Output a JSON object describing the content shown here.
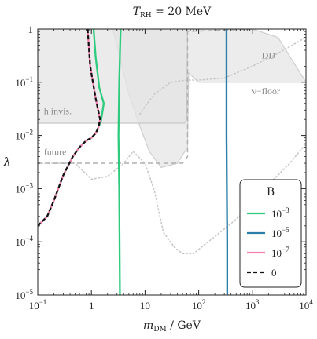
{
  "chart_data": {
    "type": "line",
    "title_text": "= 20 MeV",
    "title_symbol": "T",
    "title_sub": "RH",
    "xlabel_symbol": "m",
    "xlabel_sub": "DM",
    "xlabel_unit": "/ GeV",
    "ylabel": "λ",
    "x_scale": "log",
    "y_scale": "log",
    "xlim": [
      0.1,
      10000
    ],
    "ylim": [
      1e-05,
      1
    ],
    "x_ticks": [
      {
        "value": 0.1,
        "base": "10",
        "exp": "−1"
      },
      {
        "value": 1,
        "base": "1",
        "exp": ""
      },
      {
        "value": 10,
        "base": "10",
        "exp": ""
      },
      {
        "value": 100,
        "base": "10",
        "exp": "2"
      },
      {
        "value": 1000,
        "base": "10",
        "exp": "3"
      },
      {
        "value": 10000,
        "base": "10",
        "exp": "4"
      }
    ],
    "y_ticks": [
      {
        "value": 1e-05,
        "base": "10",
        "exp": "−5"
      },
      {
        "value": 0.0001,
        "base": "10",
        "exp": "−4"
      },
      {
        "value": 0.001,
        "base": "10",
        "exp": "−3"
      },
      {
        "value": 0.01,
        "base": "10",
        "exp": "−2"
      },
      {
        "value": 0.1,
        "base": "10",
        "exp": "−1"
      },
      {
        "value": 1,
        "base": "1",
        "exp": ""
      }
    ],
    "grid": false,
    "legend_placement": "bottom-right",
    "legend_title": "B",
    "annotations": {
      "h_invis": "h invis.",
      "future": "future",
      "dd": "DD",
      "nu_floor": "ν−floor"
    },
    "regions": {
      "dd_excluded": {
        "fill": "#ececec",
        "stroke": "#cfcfcf",
        "upper_points": [
          [
            0.1,
            1
          ],
          [
            1000,
            1
          ],
          [
            3000,
            0.7
          ],
          [
            10000,
            0.1
          ]
        ],
        "lower_points": [
          [
            10000,
            0.1
          ],
          [
            100,
            0.1
          ],
          [
            65,
            0.15
          ],
          [
            62,
            0.006
          ],
          [
            40,
            0.003
          ],
          [
            20,
            0.0025
          ],
          [
            12,
            0.005
          ],
          [
            8,
            0.015
          ],
          [
            5,
            0.06
          ],
          [
            3.5,
            0.25
          ],
          [
            2.5,
            1
          ]
        ]
      },
      "h_invis_excluded": {
        "fill": "#e4e4e4",
        "stroke": "#c8c8c8",
        "points": [
          [
            0.1,
            0.017
          ],
          [
            55,
            0.017
          ],
          [
            60,
            0.02
          ],
          [
            62,
            1
          ],
          [
            0.1,
            1
          ]
        ]
      },
      "future_limit": {
        "color": "#b0b0b0",
        "dash": "dashed",
        "points": [
          [
            0.1,
            0.003
          ],
          [
            50,
            0.003
          ],
          [
            62,
            0.004
          ],
          [
            62,
            0.9
          ],
          [
            1000,
            1
          ]
        ]
      },
      "nu_floor": {
        "color": "#c8c8c8",
        "dash": "dotted",
        "points": [
          [
            0.1,
            0.003
          ],
          [
            0.5,
            0.003
          ],
          [
            1,
            0.0015
          ],
          [
            2,
            0.0017
          ],
          [
            4,
            0.003
          ],
          [
            6,
            0.005
          ],
          [
            10,
            0.003
          ],
          [
            15,
            0.0009
          ],
          [
            22,
            0.00015
          ],
          [
            35,
            8e-05
          ],
          [
            50,
            6e-05
          ],
          [
            80,
            6e-05
          ],
          [
            150,
            0.0001
          ],
          [
            400,
            0.00022
          ],
          [
            1000,
            0.0005
          ],
          [
            2000,
            0.0012
          ],
          [
            5000,
            0.003
          ],
          [
            10000,
            0.007
          ]
        ]
      },
      "nu_floor_top": {
        "color": "#c8c8c8",
        "dash": "dotted",
        "points": [
          [
            8,
            0.025
          ],
          [
            10,
            0.035
          ],
          [
            15,
            0.06
          ],
          [
            30,
            0.1
          ],
          [
            60,
            0.11
          ],
          [
            100,
            0.11
          ],
          [
            300,
            0.12
          ],
          [
            1000,
            0.2
          ],
          [
            3000,
            0.35
          ],
          [
            10000,
            0.7
          ]
        ]
      }
    },
    "series": [
      {
        "name": "10",
        "exp": "−3",
        "color": "#2ecb7e",
        "dash": "solid",
        "points": [
          [
            0.1,
            0.0002
          ],
          [
            0.15,
            0.0003
          ],
          [
            0.2,
            0.0006
          ],
          [
            0.3,
            0.0018
          ],
          [
            0.45,
            0.004
          ],
          [
            0.6,
            0.006
          ],
          [
            0.8,
            0.008
          ],
          [
            1,
            0.009
          ],
          [
            1.2,
            0.011
          ],
          [
            1.5,
            0.018
          ],
          [
            1.7,
            0.04
          ],
          [
            1.4,
            0.08
          ],
          [
            1.2,
            0.3
          ],
          [
            1.1,
            1
          ]
        ]
      },
      {
        "name": "10",
        "exp": "−3",
        "is_secondary_branch": true,
        "color": "#2ecb7e",
        "dash": "solid",
        "points": [
          [
            3.5,
            1
          ],
          [
            3.3,
            0.1
          ],
          [
            3.2,
            0.01
          ],
          [
            3.3,
            0.001
          ],
          [
            3.4,
            1e-05
          ]
        ]
      },
      {
        "name": "10",
        "exp": "−5",
        "color": "#2a7fa8",
        "dash": "solid",
        "points": [
          [
            330,
            1
          ],
          [
            330,
            0.1
          ],
          [
            330,
            0.01
          ],
          [
            335,
            0.001
          ],
          [
            340,
            0.0001
          ],
          [
            340,
            1e-05
          ]
        ]
      },
      {
        "name": "10",
        "exp": "−7",
        "color": "#f080b0",
        "dash": "solid",
        "points": [
          [
            0.1,
            0.0002
          ],
          [
            0.15,
            0.0003
          ],
          [
            0.2,
            0.0006
          ],
          [
            0.3,
            0.0018
          ],
          [
            0.45,
            0.004
          ],
          [
            0.6,
            0.006
          ],
          [
            0.8,
            0.008
          ],
          [
            1,
            0.009
          ],
          [
            1.2,
            0.011
          ],
          [
            1.35,
            0.014
          ],
          [
            1.45,
            0.02
          ],
          [
            1.2,
            0.05
          ],
          [
            0.95,
            0.2
          ],
          [
            0.85,
            1
          ]
        ]
      },
      {
        "name": "0",
        "exp": "",
        "color": "#111111",
        "dash": "dashed",
        "points": [
          [
            0.1,
            0.0002
          ],
          [
            0.15,
            0.0003
          ],
          [
            0.2,
            0.0006
          ],
          [
            0.3,
            0.0018
          ],
          [
            0.45,
            0.004
          ],
          [
            0.6,
            0.006
          ],
          [
            0.8,
            0.008
          ],
          [
            1,
            0.009
          ],
          [
            1.2,
            0.011
          ],
          [
            1.35,
            0.014
          ],
          [
            1.45,
            0.02
          ],
          [
            1.2,
            0.05
          ],
          [
            0.95,
            0.2
          ],
          [
            0.85,
            1
          ]
        ]
      }
    ]
  }
}
